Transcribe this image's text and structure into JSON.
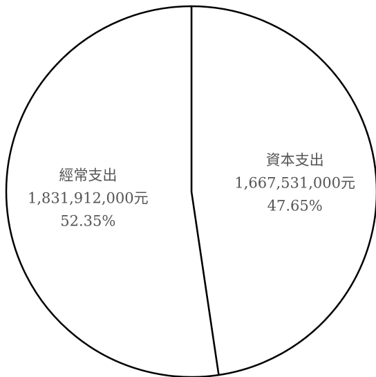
{
  "chart_data": {
    "type": "pie",
    "title": "",
    "start_angle_deg": 0,
    "direction": "clockwise",
    "colors": {
      "background": "#ffffff",
      "slice_fill": "#ffffff",
      "stroke": "#000000",
      "label": "#555555"
    },
    "slices": [
      {
        "name": "資本支出",
        "value": 1667531000,
        "value_label": "1,667,531,000元",
        "percent": 47.65,
        "percent_label": "47.65%"
      },
      {
        "name": "經常支出",
        "value": 1831912000,
        "value_label": "1,831,912,000元",
        "percent": 52.35,
        "percent_label": "52.35%"
      }
    ]
  }
}
